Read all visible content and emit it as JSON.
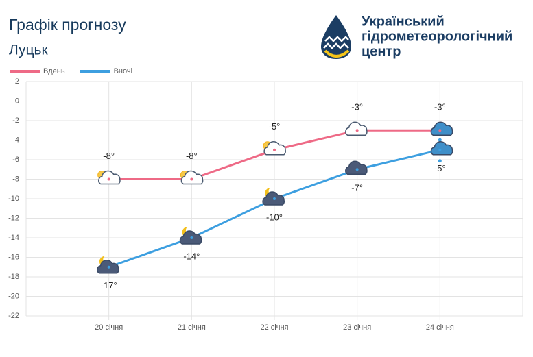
{
  "chart_data": {
    "type": "line",
    "title": "Графік прогнозу",
    "subtitle": "Луцьк",
    "logo_lines": [
      "Український",
      "гідрометеорологічний",
      "центр"
    ],
    "categories": [
      "20 січня",
      "21 січня",
      "22 січня",
      "23 січня",
      "24 січня"
    ],
    "series": [
      {
        "name": "Вдень",
        "color": "#ee6a86",
        "values": [
          -8,
          -8,
          -5,
          -3,
          -3
        ],
        "value_labels": [
          "-8°",
          "-8°",
          "-5°",
          "-3°",
          "-3°"
        ]
      },
      {
        "name": "Вночі",
        "color": "#3d9fe0",
        "values": [
          -17,
          -14,
          -10,
          -7,
          -5
        ],
        "value_labels": [
          "-17°",
          "-14°",
          "-10°",
          "-7°",
          "-5°"
        ]
      }
    ],
    "ylim": [
      -22,
      2
    ],
    "yticks": [
      -22,
      -20,
      -18,
      -16,
      -14,
      -12,
      -10,
      -8,
      -6,
      -4,
      -2,
      0,
      2
    ],
    "grid": true,
    "legend": "top-left"
  }
}
